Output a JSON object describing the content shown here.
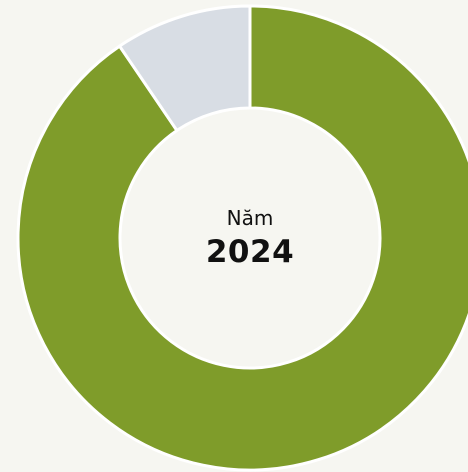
{
  "chart_data": {
    "type": "pie",
    "subtype": "donut",
    "slices": [
      {
        "value": 90.5,
        "color": "#7f9c2a"
      },
      {
        "value": 9.5,
        "color": "#d8dde4"
      }
    ],
    "center_label": {
      "label": "Năm",
      "value": "2024"
    },
    "grid": false,
    "legend": "none"
  },
  "colors": {
    "background": "#f6f6f1",
    "separator": "#ffffff",
    "text": "#111111"
  }
}
